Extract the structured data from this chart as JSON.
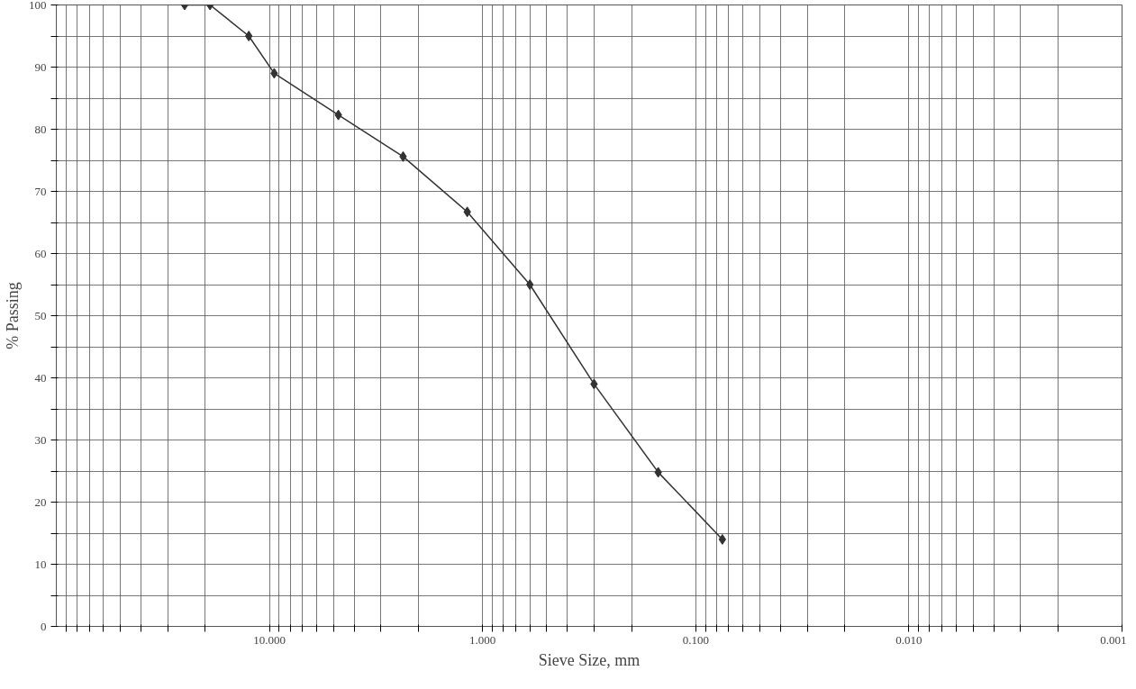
{
  "chart_data": {
    "type": "line",
    "xlabel": "Sieve Size, mm",
    "ylabel": "% Passing",
    "log": "x",
    "grid": true,
    "marker": "diamond",
    "line_style": "solid",
    "x": [
      25,
      19,
      12.5,
      9.5,
      4.75,
      2.36,
      1.18,
      0.6,
      0.3,
      0.15,
      0.075
    ],
    "series": [
      {
        "color": "#333333",
        "values": [
          100,
          100,
          95,
          89,
          82.3,
          75.6,
          66.7,
          55,
          39,
          24.8,
          14
        ]
      }
    ],
    "xlim": [
      100,
      0.001
    ],
    "ylim": [
      0,
      100
    ],
    "xticks": [
      {
        "value": 90,
        "label": null
      },
      {
        "value": 80,
        "label": null
      },
      {
        "value": 70,
        "label": null
      },
      {
        "value": 60,
        "label": null
      },
      {
        "value": 50,
        "label": null
      },
      {
        "value": 40,
        "label": null
      },
      {
        "value": 30,
        "label": null
      },
      {
        "value": 20,
        "label": null
      },
      {
        "value": 10,
        "label": "10.000"
      },
      {
        "value": 9,
        "label": null
      },
      {
        "value": 8,
        "label": null
      },
      {
        "value": 7,
        "label": null
      },
      {
        "value": 6,
        "label": null
      },
      {
        "value": 5,
        "label": null
      },
      {
        "value": 4,
        "label": null
      },
      {
        "value": 3,
        "label": null
      },
      {
        "value": 2,
        "label": null
      },
      {
        "value": 1,
        "label": "1.000"
      },
      {
        "value": 0.9,
        "label": null
      },
      {
        "value": 0.8,
        "label": null
      },
      {
        "value": 0.7,
        "label": null
      },
      {
        "value": 0.6,
        "label": null
      },
      {
        "value": 0.5,
        "label": null
      },
      {
        "value": 0.4,
        "label": null
      },
      {
        "value": 0.3,
        "label": null
      },
      {
        "value": 0.2,
        "label": null
      },
      {
        "value": 0.1,
        "label": "0.100"
      },
      {
        "value": 0.09,
        "label": null
      },
      {
        "value": 0.08,
        "label": null
      },
      {
        "value": 0.07,
        "label": null
      },
      {
        "value": 0.06,
        "label": null
      },
      {
        "value": 0.05,
        "label": null
      },
      {
        "value": 0.04,
        "label": null
      },
      {
        "value": 0.03,
        "label": null
      },
      {
        "value": 0.02,
        "label": null
      },
      {
        "value": 0.01,
        "label": "0.010"
      },
      {
        "value": 0.009,
        "label": null
      },
      {
        "value": 0.008,
        "label": null
      },
      {
        "value": 0.007,
        "label": null
      },
      {
        "value": 0.006,
        "label": null
      },
      {
        "value": 0.005,
        "label": null
      },
      {
        "value": 0.004,
        "label": null
      },
      {
        "value": 0.003,
        "label": null
      },
      {
        "value": 0.002,
        "label": null
      },
      {
        "value": 0.001,
        "label": "0.001"
      }
    ],
    "yticks": [
      0,
      {
        "value": 5,
        "label": null
      },
      10,
      {
        "value": 15,
        "label": null
      },
      20,
      {
        "value": 25,
        "label": null
      },
      30,
      {
        "value": 35,
        "label": null
      },
      40,
      {
        "value": 45,
        "label": null
      },
      50,
      {
        "value": 55,
        "label": null
      },
      60,
      {
        "value": 65,
        "label": null
      },
      70,
      {
        "value": 75,
        "label": null
      },
      80,
      {
        "value": 85,
        "label": null
      },
      90,
      {
        "value": 95,
        "label": null
      },
      100
    ]
  }
}
